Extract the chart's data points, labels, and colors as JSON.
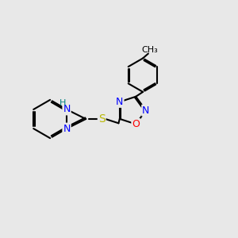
{
  "background_color": "#e8e8e8",
  "bond_color": "#000000",
  "bond_width": 1.5,
  "atom_colors": {
    "N": "#0000ff",
    "O": "#ff0000",
    "S": "#b8b800",
    "H": "#008080",
    "C": "#000000"
  },
  "font_size": 9,
  "figsize": [
    3.0,
    3.0
  ],
  "dpi": 100
}
